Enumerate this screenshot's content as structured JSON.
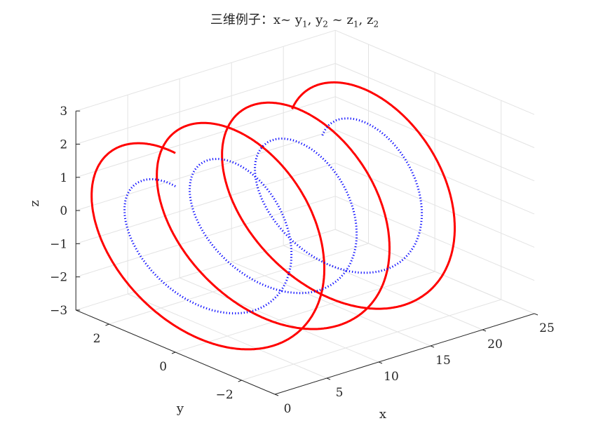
{
  "chart_data": {
    "type": "line",
    "title": {
      "prefix": "三维例子：x~  y",
      "sub1": "1",
      "mid1": ", y",
      "sub2": "2",
      "mid2": "  ~  z",
      "sub3": "1",
      "mid3": ", z",
      "sub4": "2"
    },
    "xlabel": "x",
    "ylabel": "y",
    "zlabel": "z",
    "xlim": [
      0,
      25
    ],
    "ylim": [
      -3,
      3
    ],
    "zlim": [
      -3,
      3
    ],
    "grid": true,
    "xticks": [
      0,
      5,
      10,
      15,
      20,
      25
    ],
    "yticks": [
      -2,
      0,
      2
    ],
    "zticks": [
      -3,
      -2,
      -1,
      0,
      1,
      2,
      3
    ],
    "xtick_labels": [
      "0",
      "5",
      "10",
      "15",
      "20",
      "25"
    ],
    "ytick_labels": [
      "−2",
      "0",
      "2"
    ],
    "ztick_labels": [
      "−3",
      "−2",
      "−1",
      "0",
      "1",
      "2",
      "3"
    ],
    "x_range": [
      0,
      20
    ],
    "series": [
      {
        "equation": "y = 3·sin(x), z = 3·cos(x)",
        "amplitude": 3,
        "color": "#ff0000",
        "style": "solid",
        "width": 3
      },
      {
        "equation": "y = 2·sin(x), z = 2·cos(x)",
        "amplitude": 2,
        "color": "#0000ff",
        "style": "dotted",
        "width": 3
      }
    ]
  }
}
